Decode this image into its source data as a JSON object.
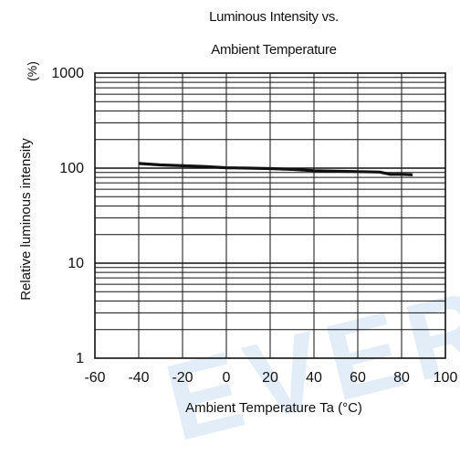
{
  "chart_data": {
    "type": "line",
    "title": [
      "Luminous Intensity vs.",
      "Ambient Temperature"
    ],
    "xlabel": "Ambient Temperature Ta (°C)",
    "ylabel": "Relative luminous intensity",
    "yunit": "(%)",
    "xlim": [
      -60,
      100
    ],
    "ylim": [
      1,
      1000
    ],
    "yscale": "log",
    "x_ticks": [
      "-60",
      "-40",
      "-20",
      "0",
      "20",
      "40",
      "60",
      "80",
      "100"
    ],
    "y_ticks": [
      "1",
      "10",
      "100",
      "1000"
    ],
    "grid": true,
    "series": [
      {
        "x": [
          -40,
          -30,
          -20,
          -10,
          0,
          10,
          20,
          30,
          40,
          50,
          60,
          70,
          75,
          80,
          85
        ],
        "y": [
          112,
          108,
          106,
          104,
          101,
          100,
          99,
          97,
          94,
          93,
          92,
          91,
          86,
          86,
          85
        ]
      }
    ]
  },
  "watermark": "EVER"
}
